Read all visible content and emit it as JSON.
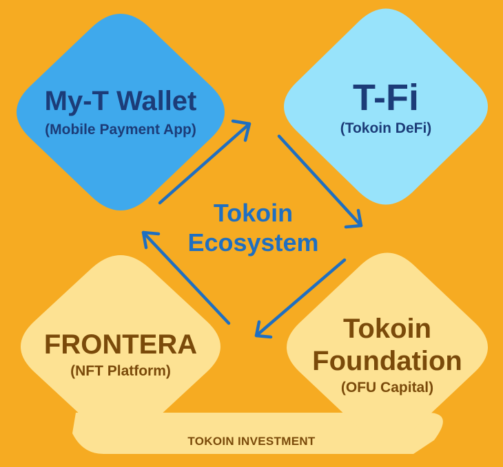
{
  "center": {
    "line1": "Tokoin",
    "line2": "Ecosystem"
  },
  "nodes": {
    "wallet": {
      "title": "My-T Wallet",
      "subtitle": "(Mobile Payment App)"
    },
    "tfi": {
      "title": "T-Fi",
      "subtitle": "(Tokoin DeFi)"
    },
    "frontera": {
      "title": "FRONTERA",
      "subtitle": "(NFT Platform)"
    },
    "foundation": {
      "title_line1": "Tokoin",
      "title_line2": "Foundation",
      "subtitle": "(OFU Capital)"
    }
  },
  "footer": {
    "label": "TOKOIN INVESTMENT"
  },
  "colors": {
    "background": "#f6ab22",
    "wallet": "#3fa9ec",
    "tfi": "#98e3fb",
    "lower": "#fde293",
    "dark_blue_text": "#1c3c78",
    "brown_text": "#7a4a0a",
    "arrow": "#1f6fc1"
  }
}
